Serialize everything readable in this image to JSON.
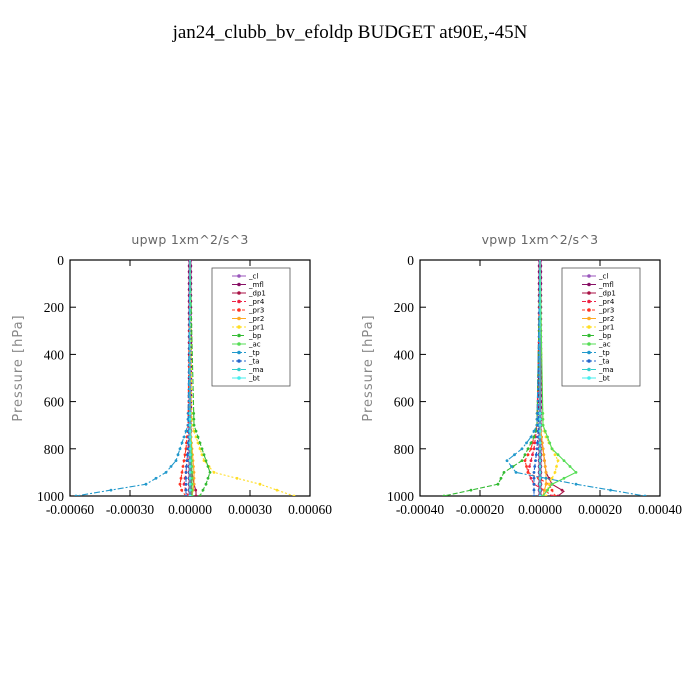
{
  "figure": {
    "title": "jan24_clubb_bv_efoldp  BUDGET at90E,-45N"
  },
  "chart_data": [
    {
      "type": "line",
      "title": "upwp   1xm^2/s^3",
      "ylabel": "Pressure  [hPa]",
      "xlabel": "",
      "xlim": [
        -0.0006,
        0.0006
      ],
      "ylim": [
        1000,
        0
      ],
      "xticks": [
        -0.0006,
        -0.0003,
        0.0,
        0.0003,
        0.0006
      ],
      "xtick_labels": [
        "-0.00060",
        "-0.00030",
        "0.00000",
        "0.00030",
        "0.00060"
      ],
      "yticks": [
        0,
        200,
        400,
        600,
        800,
        1000
      ],
      "ytick_labels": [
        "0",
        "200",
        "400",
        "600",
        "800",
        "1000"
      ],
      "legend_position": "top-right",
      "series": [
        {
          "name": "_cl",
          "color": "#9955bb",
          "pressure": [
            0,
            100,
            200,
            300,
            400,
            500,
            600,
            700,
            800,
            900,
            1000
          ],
          "values": [
            0,
            0,
            0,
            0,
            0,
            0,
            0,
            0,
            0,
            0,
            0
          ]
        },
        {
          "name": "_mfl",
          "color": "#881166",
          "pressure": [
            0,
            100,
            200,
            300,
            400,
            500,
            600,
            700,
            800,
            900,
            1000
          ],
          "values": [
            0,
            0,
            0,
            0,
            0,
            0,
            0,
            0,
            0,
            0,
            0
          ]
        },
        {
          "name": "_dp1",
          "color": "#aa1144",
          "pressure": [
            0,
            700,
            800,
            900,
            950,
            980,
            1000
          ],
          "values": [
            0,
            0,
            5e-06,
            1e-05,
            2e-05,
            3e-05,
            3e-05
          ]
        },
        {
          "name": "_pr4",
          "color": "#ee2244",
          "pressure": [
            0,
            700,
            800,
            900,
            950,
            980,
            1000
          ],
          "values": [
            0,
            0,
            -1e-05,
            -2e-05,
            -3e-05,
            -2e-05,
            -1e-05
          ]
        },
        {
          "name": "_pr3",
          "color": "#ff3322",
          "pressure": [
            0,
            700,
            800,
            900,
            950,
            980,
            1000
          ],
          "values": [
            0,
            -1e-05,
            -2e-05,
            -4e-05,
            -5e-05,
            -4e-05,
            -2e-05
          ]
        },
        {
          "name": "_pr2",
          "color": "#ffaa22",
          "pressure": [
            0,
            700,
            800,
            900,
            950,
            1000
          ],
          "values": [
            0,
            0,
            1e-05,
            2e-05,
            2e-05,
            1e-05
          ]
        },
        {
          "name": "_pr1",
          "color": "#ffdd22",
          "pressure": [
            0,
            700,
            750,
            800,
            850,
            900,
            950,
            1000
          ],
          "values": [
            0,
            1e-05,
            3e-05,
            5e-05,
            7e-05,
            0.00012,
            0.00035,
            0.00052
          ]
        },
        {
          "name": "_bp",
          "color": "#33bb33",
          "pressure": [
            0,
            700,
            750,
            800,
            850,
            900,
            950,
            1000
          ],
          "values": [
            0,
            2e-05,
            4e-05,
            6e-05,
            8e-05,
            0.0001,
            8e-05,
            5e-05
          ]
        },
        {
          "name": "_ac",
          "color": "#55dd55",
          "pressure": [
            0,
            700,
            800,
            900,
            1000
          ],
          "values": [
            0,
            0,
            5e-06,
            1e-05,
            1e-05
          ]
        },
        {
          "name": "_tp",
          "color": "#2299cc",
          "pressure": [
            0,
            700,
            750,
            800,
            850,
            900,
            950,
            1000
          ],
          "values": [
            0,
            -1e-05,
            -3e-05,
            -5e-05,
            -7e-05,
            -0.00012,
            -0.00022,
            -0.00057
          ]
        },
        {
          "name": "_ta",
          "color": "#2266cc",
          "pressure": [
            0,
            700,
            800,
            900,
            1000
          ],
          "values": [
            0,
            -5e-06,
            -1e-05,
            -2e-05,
            -2e-05
          ]
        },
        {
          "name": "_ma",
          "color": "#33cccc",
          "pressure": [
            0,
            1000
          ],
          "values": [
            0,
            0
          ]
        },
        {
          "name": "_bt",
          "color": "#44eeee",
          "pressure": [
            0,
            1000
          ],
          "values": [
            0,
            0
          ]
        }
      ]
    },
    {
      "type": "line",
      "title": "vpwp   1xm^2/s^3",
      "ylabel": "Pressure  [hPa]",
      "xlabel": "",
      "xlim": [
        -0.0004,
        0.0004
      ],
      "ylim": [
        1000,
        0
      ],
      "xticks": [
        -0.0004,
        -0.0002,
        0.0,
        0.0002,
        0.0004
      ],
      "xtick_labels": [
        "-0.00040",
        "-0.00020",
        "0.00000",
        "0.00020",
        "0.00040"
      ],
      "yticks": [
        0,
        200,
        400,
        600,
        800,
        1000
      ],
      "ytick_labels": [
        "0",
        "200",
        "400",
        "600",
        "800",
        "1000"
      ],
      "legend_position": "top-right",
      "series": [
        {
          "name": "_cl",
          "color": "#9955bb",
          "pressure": [
            0,
            100,
            200,
            300,
            400,
            500,
            600,
            700,
            800,
            900,
            1000
          ],
          "values": [
            0,
            0,
            0,
            0,
            0,
            0,
            0,
            0,
            0,
            0,
            0
          ]
        },
        {
          "name": "_mfl",
          "color": "#881166",
          "pressure": [
            0,
            100,
            200,
            300,
            400,
            500,
            600,
            700,
            800,
            900,
            1000
          ],
          "values": [
            0,
            0,
            0,
            0,
            0,
            0,
            0,
            0,
            0,
            0,
            0
          ]
        },
        {
          "name": "_dp1",
          "color": "#aa1144",
          "pressure": [
            0,
            700,
            800,
            900,
            950,
            980,
            1000
          ],
          "values": [
            0,
            0,
            1e-05,
            2e-05,
            4e-05,
            8e-05,
            6e-05
          ]
        },
        {
          "name": "_pr4",
          "color": "#ee2244",
          "pressure": [
            0,
            700,
            800,
            900,
            950,
            980,
            1000
          ],
          "values": [
            0,
            -1e-05,
            -2e-05,
            -4e-05,
            -2e-05,
            2e-05,
            4e-05
          ]
        },
        {
          "name": "_pr3",
          "color": "#ff3322",
          "pressure": [
            0,
            700,
            800,
            850,
            900,
            950,
            1000
          ],
          "values": [
            0,
            -1e-05,
            -3e-05,
            -5e-05,
            -4e-05,
            3e-05,
            5e-05
          ]
        },
        {
          "name": "_pr2",
          "color": "#ffaa22",
          "pressure": [
            0,
            700,
            800,
            900,
            950,
            1000
          ],
          "values": [
            0,
            0,
            1e-05,
            2e-05,
            2e-05,
            1e-05
          ]
        },
        {
          "name": "_pr1",
          "color": "#ffdd22",
          "pressure": [
            0,
            700,
            750,
            800,
            850,
            900,
            950,
            1000
          ],
          "values": [
            0,
            1e-05,
            2e-05,
            4e-05,
            6e-05,
            5e-05,
            3e-05,
            2e-05
          ]
        },
        {
          "name": "_bp",
          "color": "#33bb33",
          "pressure": [
            0,
            700,
            750,
            800,
            850,
            900,
            950,
            1000
          ],
          "values": [
            0,
            -1e-05,
            -2e-05,
            -4e-05,
            -6e-05,
            -0.00012,
            -0.00014,
            -0.00032
          ]
        },
        {
          "name": "_ac",
          "color": "#55dd55",
          "pressure": [
            0,
            700,
            800,
            850,
            900,
            950,
            1000
          ],
          "values": [
            0,
            1e-05,
            4e-05,
            8e-05,
            0.00012,
            4e-05,
            1e-05
          ]
        },
        {
          "name": "_tp",
          "color": "#2299cc",
          "pressure": [
            0,
            700,
            750,
            800,
            850,
            900,
            950,
            1000
          ],
          "values": [
            0,
            -1e-05,
            -3e-05,
            -6e-05,
            -0.00011,
            -8e-05,
            0.00012,
            0.00035
          ]
        },
        {
          "name": "_ta",
          "color": "#2266cc",
          "pressure": [
            0,
            700,
            800,
            900,
            1000
          ],
          "values": [
            0,
            -5e-06,
            -1e-05,
            -2e-05,
            -2e-05
          ]
        },
        {
          "name": "_ma",
          "color": "#33cccc",
          "pressure": [
            0,
            1000
          ],
          "values": [
            0,
            0
          ]
        },
        {
          "name": "_bt",
          "color": "#44eeee",
          "pressure": [
            0,
            1000
          ],
          "values": [
            0,
            0
          ]
        }
      ]
    }
  ]
}
